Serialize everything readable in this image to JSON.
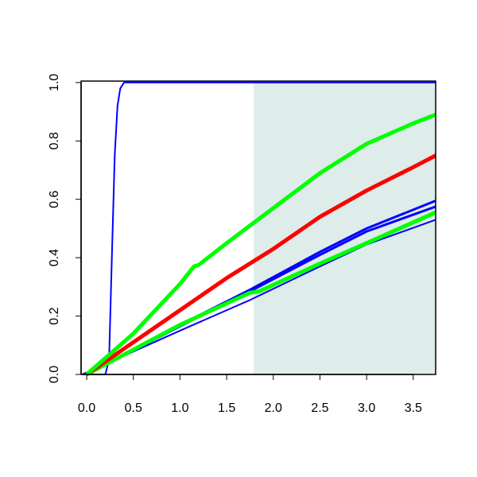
{
  "chart_data": {
    "type": "line",
    "xlim": [
      -0.06,
      3.74
    ],
    "ylim": [
      0,
      1.005
    ],
    "xticks": [
      {
        "value": 0,
        "label": "0.0"
      },
      {
        "value": 0.5,
        "label": "0.5"
      },
      {
        "value": 1,
        "label": "1.0"
      },
      {
        "value": 1.5,
        "label": "1.5"
      },
      {
        "value": 2,
        "label": "2.0"
      },
      {
        "value": 2.5,
        "label": "2.5"
      },
      {
        "value": 3,
        "label": "3.0"
      },
      {
        "value": 3.5,
        "label": "3.5"
      }
    ],
    "yticks": [
      {
        "value": 0,
        "label": "0.0"
      },
      {
        "value": 0.2,
        "label": "0.2"
      },
      {
        "value": 0.4,
        "label": "0.4"
      },
      {
        "value": 0.6,
        "label": "0.6"
      },
      {
        "value": 0.8,
        "label": "0.8"
      },
      {
        "value": 1,
        "label": "1.0"
      }
    ],
    "shaded_region": [
      1.79,
      3.74
    ],
    "shade_color": "#deecea",
    "series": [
      {
        "color": "#0000ff",
        "width": 2,
        "x": [
          -0.05,
          0.2,
          0.24,
          0.27,
          0.3,
          0.33,
          0.36,
          0.4,
          0.45,
          3.74
        ],
        "values": [
          0,
          0,
          0.05,
          0.4,
          0.75,
          0.92,
          0.98,
          1.0,
          1.0,
          1.0
        ]
      },
      {
        "color": "#0000ff",
        "width": 3,
        "x": [
          0,
          1,
          1.75,
          2.5,
          3,
          3.74
        ],
        "values": [
          0,
          0.17,
          0.29,
          0.42,
          0.5,
          0.595
        ]
      },
      {
        "color": "#0000ff",
        "width": 3,
        "x": [
          0,
          1,
          1.75,
          2.5,
          3,
          3.74
        ],
        "values": [
          0,
          0.165,
          0.285,
          0.41,
          0.49,
          0.575
        ]
      },
      {
        "color": "#0000ff",
        "width": 2,
        "x": [
          -0.05,
          1,
          1.75,
          2.5,
          3,
          3.74
        ],
        "values": [
          0,
          0.15,
          0.255,
          0.37,
          0.445,
          0.53
        ]
      },
      {
        "color": "#00ff00",
        "width": 5,
        "x": [
          0,
          1,
          1.75,
          1.85,
          2.5,
          3,
          3.74
        ],
        "values": [
          0,
          0.17,
          0.28,
          0.285,
          0.38,
          0.45,
          0.555
        ]
      },
      {
        "color": "#ff0000",
        "width": 5,
        "x": [
          0,
          0.5,
          1,
          1.5,
          2,
          2.5,
          3,
          3.5,
          3.74
        ],
        "values": [
          0,
          0.11,
          0.22,
          0.33,
          0.43,
          0.54,
          0.63,
          0.71,
          0.75
        ]
      },
      {
        "color": "#00ff00",
        "width": 5,
        "x": [
          0,
          0.5,
          1,
          1.15,
          1.2,
          1.5,
          2,
          2.5,
          3,
          3.5,
          3.74
        ],
        "values": [
          0,
          0.14,
          0.31,
          0.37,
          0.375,
          0.45,
          0.57,
          0.69,
          0.79,
          0.86,
          0.89
        ]
      }
    ]
  }
}
